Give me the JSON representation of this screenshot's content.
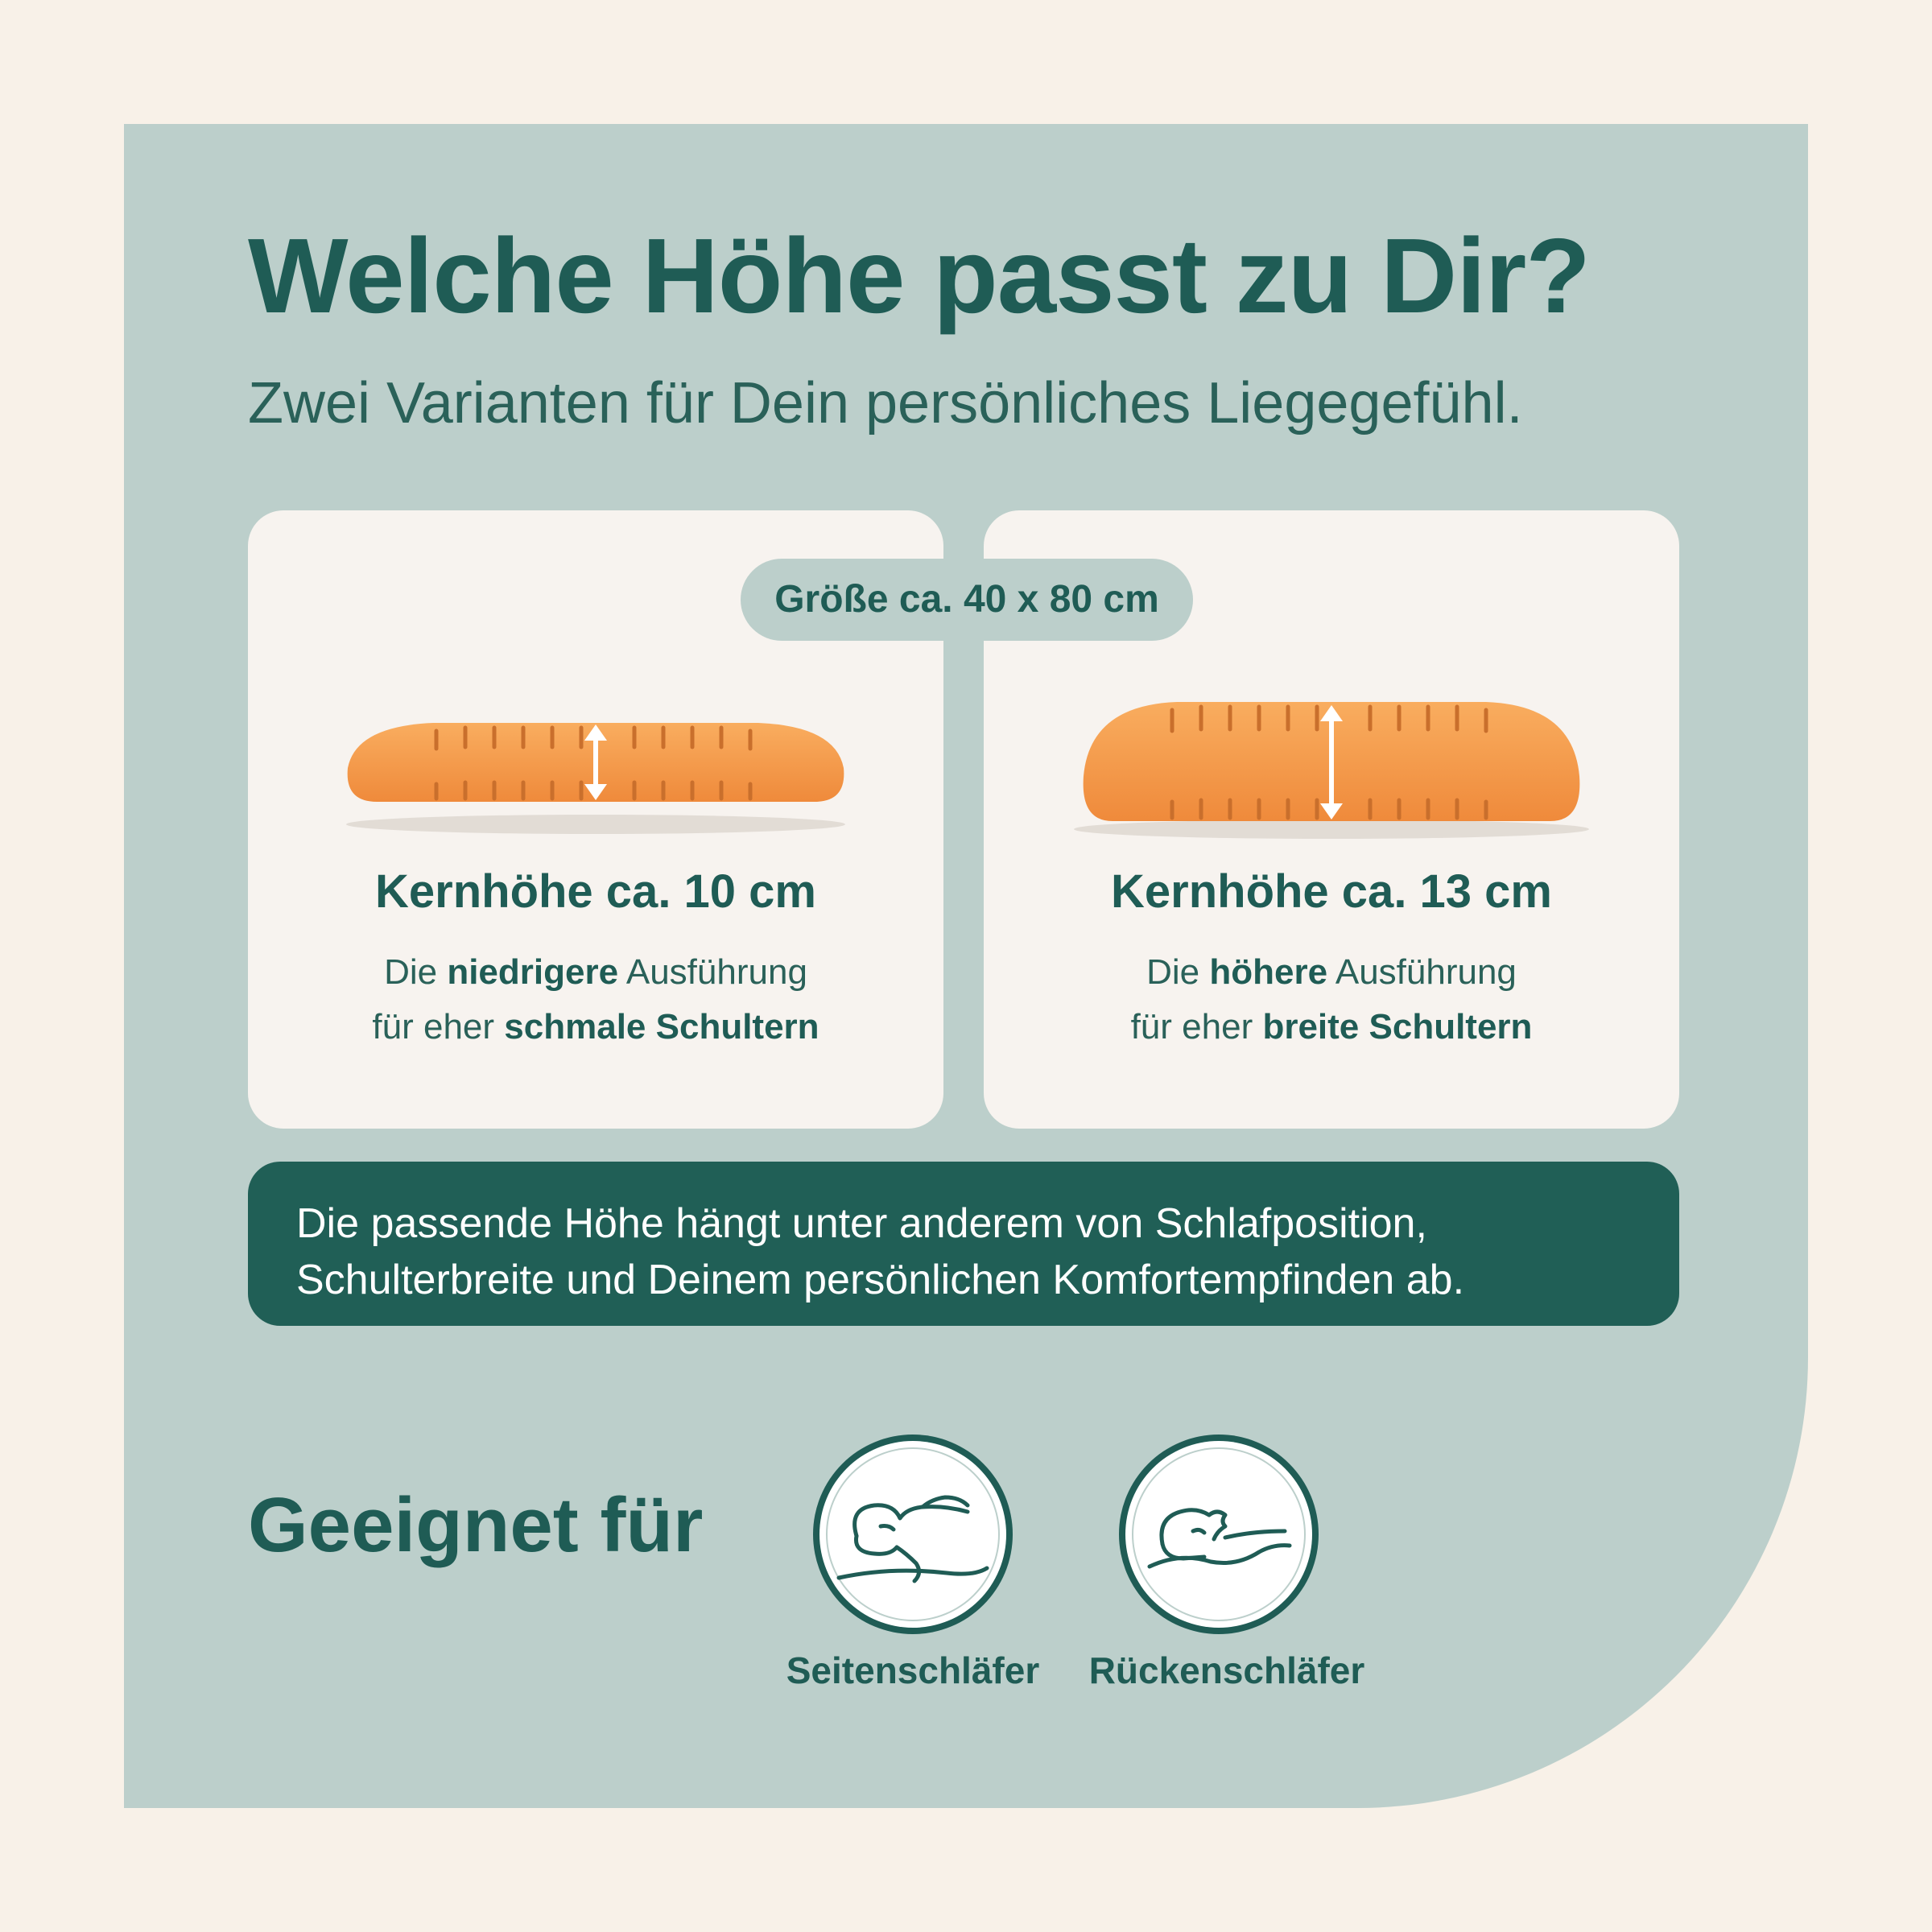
{
  "header": {
    "title": "Welche Höhe passt zu Dir?",
    "subtitle": "Zwei Varianten für Dein persönliches Liegegefühl."
  },
  "size_badge": "Größe ca. 40 x 80 cm",
  "variants": [
    {
      "heading": "Kernhöhe ca. 10 cm",
      "desc_pre": "Die ",
      "desc_bold1": "niedrigere",
      "desc_mid": " Ausführung",
      "desc_pre2": "für eher ",
      "desc_bold2": "schmale Schultern"
    },
    {
      "heading": "Kernhöhe ca. 13 cm",
      "desc_pre": "Die ",
      "desc_bold1": "höhere",
      "desc_mid": " Ausführung",
      "desc_pre2": "für eher ",
      "desc_bold2": "breite Schultern"
    }
  ],
  "info_box": {
    "line1": "Die passende Höhe hängt unter anderem von Schlafposition,",
    "line2": "Schulterbreite und Deinem persönlichen Komfortempfinden ab."
  },
  "suitable": {
    "label": "Geeignet für",
    "items": [
      {
        "label": "Seitenschläfer",
        "icon": "side-sleeper-icon"
      },
      {
        "label": "Rückenschläfer",
        "icon": "back-sleeper-icon"
      }
    ]
  },
  "colors": {
    "page_bg": "#f8f1e8",
    "panel": "#bccfcb",
    "card": "#f7f3ef",
    "accent_green": "#1f5c55",
    "info_bg": "#205f56",
    "pillow_orange": "#f49a4a"
  }
}
